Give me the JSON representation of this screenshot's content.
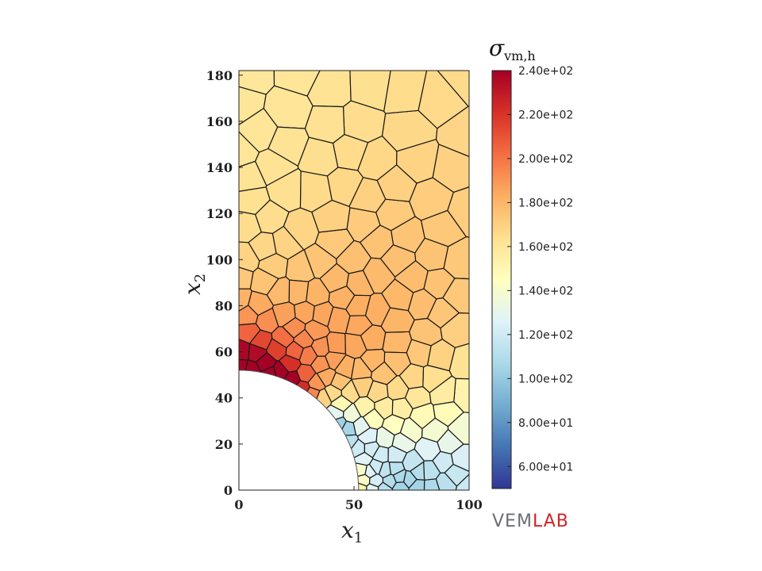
{
  "chart_data": {
    "type": "heatmap",
    "description_of_field": "Voronoi polygonal mesh of a plate with circular hole, colored by von Mises stress",
    "title": "",
    "xlabel": {
      "symbol": "x",
      "subscript": "1"
    },
    "ylabel": {
      "symbol": "x",
      "subscript": "2"
    },
    "xlim": [
      0,
      100
    ],
    "ylim": [
      0,
      182
    ],
    "xticks": [
      0,
      50,
      100
    ],
    "yticks": [
      0,
      20,
      40,
      60,
      80,
      100,
      120,
      140,
      160,
      180
    ],
    "hole": {
      "center": [
        0,
        0
      ],
      "radius": 52
    },
    "colorbar": {
      "title": {
        "symbol": "σ",
        "subscript": "vm,h"
      },
      "min": 50,
      "max": 240,
      "ticks": [
        60,
        80,
        100,
        120,
        140,
        160,
        180,
        200,
        220,
        240
      ],
      "tick_labels": [
        "6.00e+01",
        "8.00e+01",
        "1.00e+02",
        "1.20e+02",
        "1.40e+02",
        "1.60e+02",
        "1.80e+02",
        "2.00e+02",
        "2.20e+02",
        "2.40e+02"
      ],
      "colors": [
        "#313695",
        "#4575b4",
        "#74add1",
        "#abd9e9",
        "#e0f3f8",
        "#ffffbf",
        "#fee090",
        "#fdae61",
        "#f46d43",
        "#d73027",
        "#a50026"
      ]
    }
  },
  "logo": {
    "part1": "VEM",
    "part2": "LAB",
    "color1": "#6d6e71",
    "color2": "#d2232a"
  }
}
